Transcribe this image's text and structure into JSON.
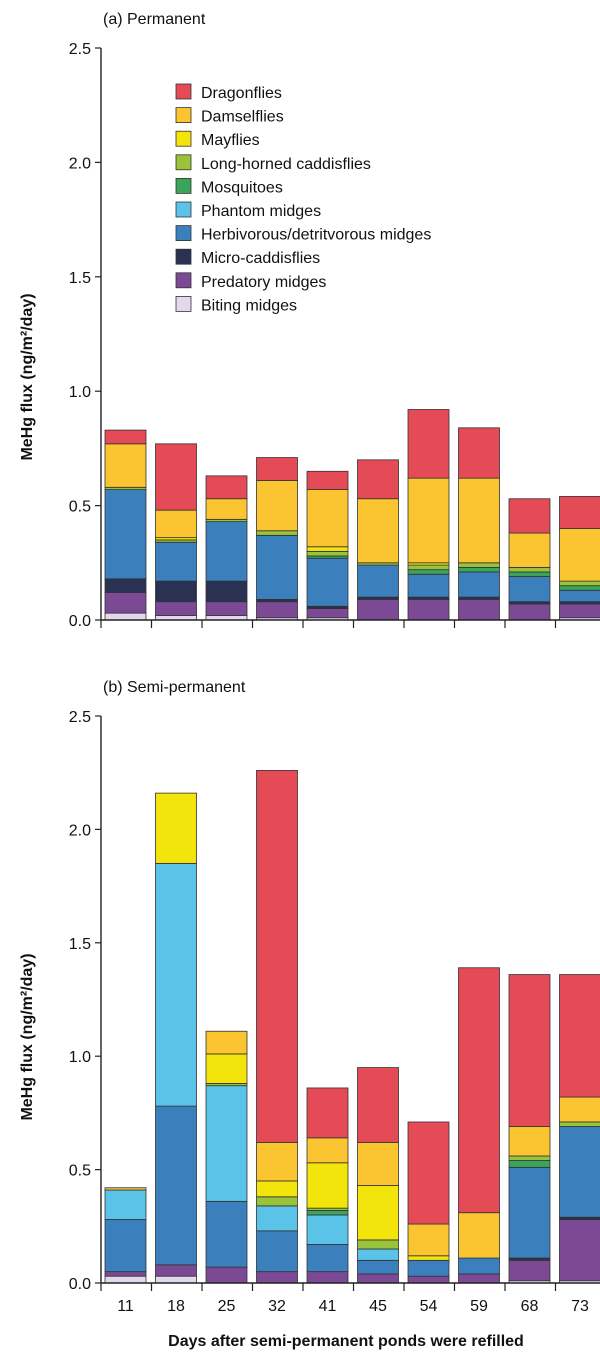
{
  "colors": {
    "Dragonflies": "#e54a57",
    "Damselflies": "#fbc531",
    "Mayflies": "#f3e40c",
    "Long-horned caddisflies": "#98c33b",
    "Mosquitoes": "#3aa55a",
    "Phantom midges": "#5bc3e8",
    "Herbivorous/detritvorous midges": "#3b80bd",
    "Micro-caddisflies": "#2b3152",
    "Predatory midges": "#7c4a94",
    "Biting midges": "#e4d8ec"
  },
  "legend": [
    "Dragonflies",
    "Damselflies",
    "Mayflies",
    "Long-horned caddisflies",
    "Mosquitoes",
    "Phantom midges",
    "Herbivorous/detritvorous midges",
    "Micro-caddisflies",
    "Predatory midges",
    "Biting midges"
  ],
  "xlabel": "Days after semi-permanent ponds were refilled",
  "chart_data": [
    {
      "type": "bar",
      "stacked": true,
      "title": "(a) Permanent",
      "ylabel": "MeHg flux (ng/m²/day)",
      "ylim": [
        0,
        2.5
      ],
      "yticks": [
        "0.0",
        "0.5",
        "1.0",
        "1.5",
        "2.0",
        "2.5"
      ],
      "categories": [
        "11",
        "18",
        "25",
        "32",
        "41",
        "45",
        "54",
        "59",
        "68",
        "73"
      ],
      "show_x_labels": false,
      "series": [
        {
          "name": "Biting midges",
          "values": [
            0.03,
            0.02,
            0.02,
            0.01,
            0.01,
            0.0,
            0.0,
            0.0,
            0.0,
            0.01
          ]
        },
        {
          "name": "Predatory midges",
          "values": [
            0.09,
            0.06,
            0.06,
            0.07,
            0.04,
            0.09,
            0.09,
            0.09,
            0.07,
            0.06
          ]
        },
        {
          "name": "Micro-caddisflies",
          "values": [
            0.06,
            0.09,
            0.09,
            0.01,
            0.01,
            0.01,
            0.01,
            0.01,
            0.01,
            0.01
          ]
        },
        {
          "name": "Herbivorous/detritvorous midges",
          "values": [
            0.39,
            0.17,
            0.26,
            0.28,
            0.21,
            0.14,
            0.1,
            0.11,
            0.11,
            0.05
          ]
        },
        {
          "name": "Phantom midges",
          "values": [
            0.0,
            0.0,
            0.0,
            0.0,
            0.0,
            0.0,
            0.0,
            0.0,
            0.0,
            0.0
          ]
        },
        {
          "name": "Mosquitoes",
          "values": [
            0.0,
            0.0,
            0.0,
            0.0,
            0.01,
            0.0,
            0.02,
            0.02,
            0.02,
            0.02
          ]
        },
        {
          "name": "Long-horned caddisflies",
          "values": [
            0.01,
            0.01,
            0.01,
            0.02,
            0.02,
            0.01,
            0.02,
            0.02,
            0.02,
            0.02
          ]
        },
        {
          "name": "Mayflies",
          "values": [
            0.0,
            0.01,
            0.0,
            0.0,
            0.02,
            0.0,
            0.01,
            0.0,
            0.0,
            0.0
          ]
        },
        {
          "name": "Damselflies",
          "values": [
            0.19,
            0.12,
            0.09,
            0.22,
            0.25,
            0.28,
            0.37,
            0.37,
            0.15,
            0.23
          ]
        },
        {
          "name": "Dragonflies",
          "values": [
            0.06,
            0.29,
            0.1,
            0.1,
            0.08,
            0.17,
            0.3,
            0.22,
            0.15,
            0.14
          ]
        }
      ]
    },
    {
      "type": "bar",
      "stacked": true,
      "title": "(b) Semi-permanent",
      "ylabel": "MeHg flux (ng/m²/day)",
      "ylim": [
        0,
        2.5
      ],
      "yticks": [
        "0.0",
        "0.5",
        "1.0",
        "1.5",
        "2.0",
        "2.5"
      ],
      "categories": [
        "11",
        "18",
        "25",
        "32",
        "41",
        "45",
        "54",
        "59",
        "68",
        "73"
      ],
      "show_x_labels": true,
      "series": [
        {
          "name": "Biting midges",
          "values": [
            0.03,
            0.03,
            0.0,
            0.0,
            0.0,
            0.0,
            0.0,
            0.0,
            0.01,
            0.01
          ]
        },
        {
          "name": "Predatory midges",
          "values": [
            0.02,
            0.05,
            0.07,
            0.05,
            0.05,
            0.04,
            0.03,
            0.04,
            0.09,
            0.27
          ]
        },
        {
          "name": "Micro-caddisflies",
          "values": [
            0.0,
            0.0,
            0.0,
            0.0,
            0.0,
            0.0,
            0.0,
            0.0,
            0.01,
            0.01
          ]
        },
        {
          "name": "Herbivorous/detritvorous midges",
          "values": [
            0.23,
            0.7,
            0.29,
            0.18,
            0.12,
            0.06,
            0.07,
            0.07,
            0.4,
            0.4
          ]
        },
        {
          "name": "Phantom midges",
          "values": [
            0.13,
            1.07,
            0.51,
            0.11,
            0.13,
            0.05,
            0.0,
            0.0,
            0.0,
            0.0
          ]
        },
        {
          "name": "Mosquitoes",
          "values": [
            0.0,
            0.0,
            0.0,
            0.0,
            0.02,
            0.0,
            0.0,
            0.0,
            0.03,
            0.0
          ]
        },
        {
          "name": "Long-horned caddisflies",
          "values": [
            0.0,
            0.0,
            0.01,
            0.04,
            0.01,
            0.04,
            0.0,
            0.0,
            0.02,
            0.02
          ]
        },
        {
          "name": "Mayflies",
          "values": [
            0.0,
            0.31,
            0.13,
            0.07,
            0.2,
            0.24,
            0.02,
            0.0,
            0.0,
            0.0
          ]
        },
        {
          "name": "Damselflies",
          "values": [
            0.01,
            0.0,
            0.1,
            0.17,
            0.11,
            0.19,
            0.14,
            0.2,
            0.13,
            0.11
          ]
        },
        {
          "name": "Dragonflies",
          "values": [
            0.0,
            0.0,
            0.0,
            1.64,
            0.22,
            0.33,
            0.45,
            1.08,
            0.67,
            0.54
          ]
        }
      ]
    }
  ]
}
